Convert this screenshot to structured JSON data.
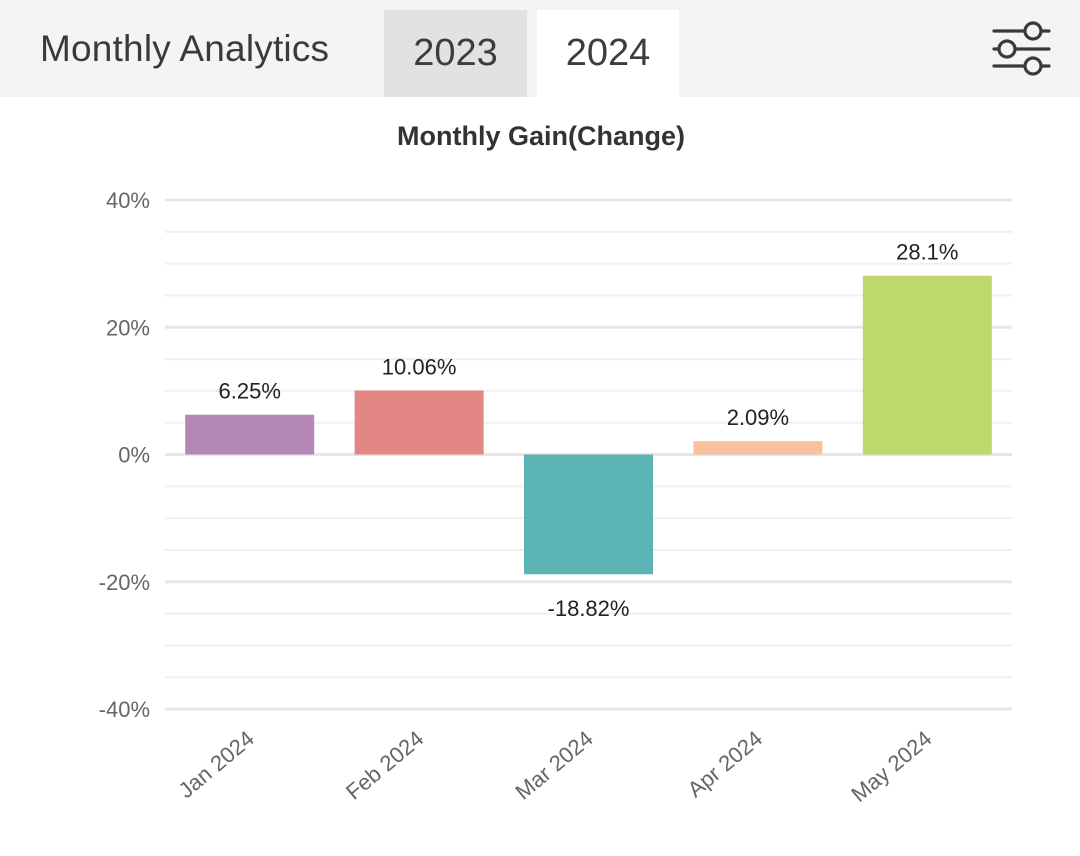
{
  "header": {
    "title": "Monthly Analytics",
    "tabs": [
      {
        "label": "2023",
        "selected": false
      },
      {
        "label": "2024",
        "selected": true
      }
    ],
    "filter_icon": "sliders-icon"
  },
  "colors": {
    "header_bg": "#f4f4f4",
    "tab_inactive_bg": "#e2e2e2",
    "tab_active_bg": "#ffffff",
    "grid": "#e6e6e6",
    "text": "#333333",
    "axis_text": "#666666"
  },
  "chart_data": {
    "type": "bar",
    "title": "Monthly Gain(Change)",
    "xlabel": "",
    "ylabel": "",
    "categories": [
      "Jan 2024",
      "Feb 2024",
      "Mar 2024",
      "Apr 2024",
      "May 2024"
    ],
    "values": [
      6.25,
      10.06,
      -18.82,
      2.09,
      28.1
    ],
    "data_labels": [
      "6.25%",
      "10.06%",
      "-18.82%",
      "2.09%",
      "28.1%"
    ],
    "colors": [
      "#b487b5",
      "#e48683",
      "#5cb3b3",
      "#f9c09d",
      "#bdd86b"
    ],
    "ylim": [
      -40,
      40
    ],
    "yticks": [
      40,
      20,
      0,
      -20,
      -40
    ],
    "ytick_labels": [
      "40%",
      "20%",
      "0%",
      "-20%",
      "-40%"
    ],
    "grid": true,
    "legend": "none"
  }
}
